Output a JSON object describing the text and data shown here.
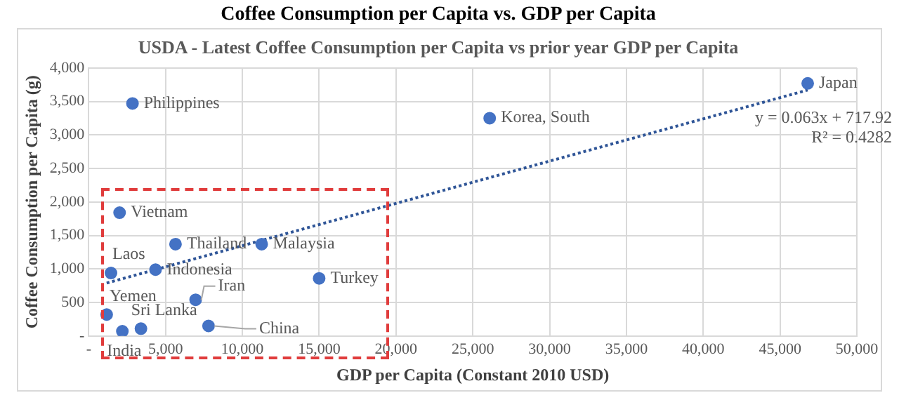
{
  "chart_data": {
    "type": "scatter",
    "title": "Coffee Consumption per Capita vs. GDP per Capita",
    "subtitle": "USDA - Latest Coffee Consumption per Capita vs prior year GDP per Capita",
    "xlabel": "GDP per Capita (Constant 2010 USD)",
    "ylabel": "Coffee Consumption per Capita (g)",
    "xlim": [
      0,
      50000
    ],
    "xticks": [
      {
        "value": 0,
        "label": "-"
      },
      {
        "value": 5000,
        "label": "5,000"
      },
      {
        "value": 10000,
        "label": "10,000"
      },
      {
        "value": 15000,
        "label": "15,000"
      },
      {
        "value": 20000,
        "label": "20,000"
      },
      {
        "value": 25000,
        "label": "25,000"
      },
      {
        "value": 30000,
        "label": "30,000"
      },
      {
        "value": 35000,
        "label": "35,000"
      },
      {
        "value": 40000,
        "label": "40,000"
      },
      {
        "value": 45000,
        "label": "45,000"
      },
      {
        "value": 50000,
        "label": "50,000"
      }
    ],
    "ylim": [
      0,
      4000
    ],
    "yticks": [
      {
        "value": 0,
        "label": "-"
      },
      {
        "value": 500,
        "label": "500"
      },
      {
        "value": 1000,
        "label": "1,000"
      },
      {
        "value": 1500,
        "label": "1,500"
      },
      {
        "value": 2000,
        "label": "2,000"
      },
      {
        "value": 2500,
        "label": "2,500"
      },
      {
        "value": 3000,
        "label": "3,000"
      },
      {
        "value": 3500,
        "label": "3,500"
      },
      {
        "value": 4000,
        "label": "4,000"
      }
    ],
    "grid": true,
    "series": [
      {
        "type": "scatter",
        "color": "#4472c4",
        "marker": "circle",
        "x": [
          2850,
          26100,
          46800,
          2010,
          5650,
          11260,
          1450,
          4350,
          15000,
          6960,
          1170,
          3400,
          2190,
          7800
        ],
        "values": [
          3470,
          3250,
          3770,
          1840,
          1370,
          1370,
          940,
          990,
          860,
          540,
          320,
          110,
          70,
          150
        ]
      },
      {
        "type": "line",
        "color": "#2f5597",
        "marker": "none",
        "line_style": "dotted",
        "x": [
          1170,
          46800
        ],
        "values": [
          790,
          3670
        ]
      }
    ],
    "annotations": [
      {
        "text": "Philippines",
        "x": 2850,
        "y": 3470
      },
      {
        "text": "Korea, South",
        "x": 26100,
        "y": 3255
      },
      {
        "text": "Japan",
        "x": 46800,
        "y": 3770
      },
      {
        "text": "Vietnam",
        "x": 2010,
        "y": 1840
      },
      {
        "text": "Thailand",
        "x": 5650,
        "y": 1370
      },
      {
        "text": "Malaysia",
        "x": 11260,
        "y": 1370
      },
      {
        "text": "Laos",
        "x": 1450,
        "y": 940
      },
      {
        "text": "Indonesia",
        "x": 4350,
        "y": 985
      },
      {
        "text": "Turkey",
        "x": 15000,
        "y": 860
      },
      {
        "text": "Iran",
        "x": 6960,
        "y": 535
      },
      {
        "text": "Yemen",
        "x": 1170,
        "y": 320
      },
      {
        "text": "Sri Lanka",
        "x": 3400,
        "y": 110
      },
      {
        "text": "India",
        "x": 2190,
        "y": 65
      },
      {
        "text": "China",
        "x": 7800,
        "y": 150
      },
      "y = 0.063x + 717.92",
      "R² = 0.4282"
    ]
  }
}
